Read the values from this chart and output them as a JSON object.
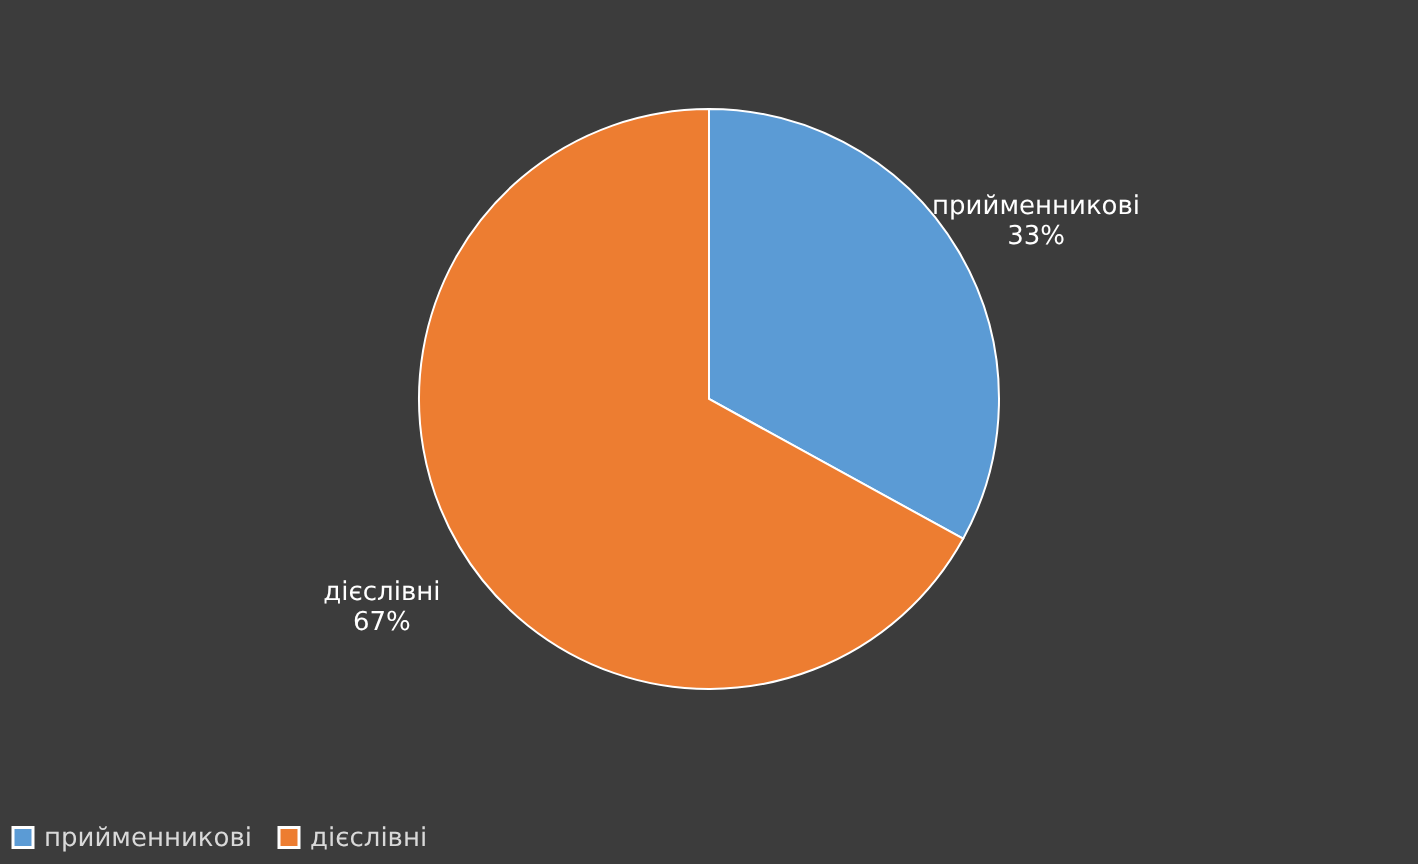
{
  "chart_data": {
    "type": "pie",
    "categories": [
      "прийменникові",
      "дієслівні"
    ],
    "values": [
      33,
      67
    ],
    "colors": [
      "#5b9bd5",
      "#ed7d31"
    ],
    "value_labels": [
      "33%",
      "67%"
    ],
    "legend": "bottom"
  }
}
